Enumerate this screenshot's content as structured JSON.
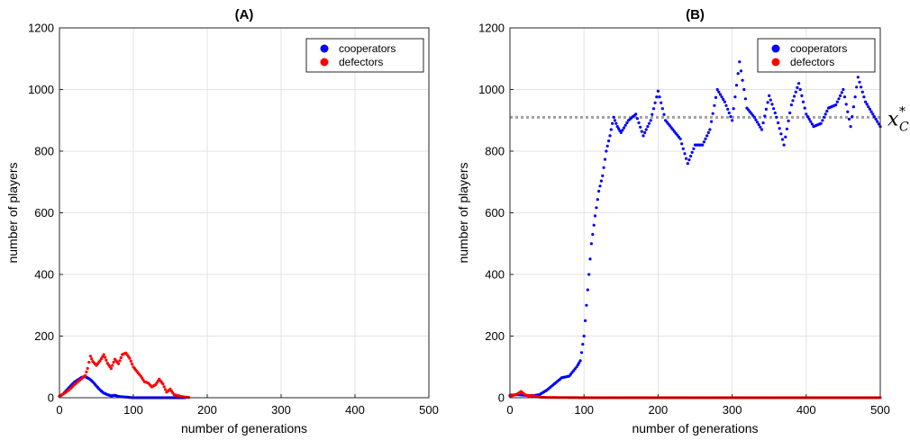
{
  "chart_data": [
    {
      "panel": "(A)",
      "type": "scatter",
      "title": "(A)",
      "xlabel": "number of generations",
      "ylabel": "number of players",
      "xlim": [
        0,
        500
      ],
      "ylim": [
        0,
        1200
      ],
      "xticks": [
        0,
        100,
        200,
        300,
        400,
        500
      ],
      "yticks": [
        0,
        200,
        400,
        600,
        800,
        1000,
        1200
      ],
      "grid": true,
      "legend": {
        "location": "top-right",
        "entries": [
          "cooperators",
          "defectors"
        ]
      },
      "series": [
        {
          "name": "cooperators",
          "color": "#0000ff",
          "x": [
            0,
            5,
            10,
            15,
            20,
            25,
            30,
            35,
            40,
            45,
            50,
            55,
            60,
            65,
            70,
            75,
            80,
            85,
            90,
            95,
            100,
            110,
            120,
            130,
            140,
            150,
            160,
            170
          ],
          "y": [
            5,
            12,
            25,
            38,
            50,
            58,
            66,
            68,
            62,
            52,
            38,
            25,
            15,
            10,
            6,
            8,
            4,
            3,
            2,
            1,
            0,
            0,
            0,
            0,
            0,
            0,
            0,
            0
          ]
        },
        {
          "name": "defectors",
          "color": "#ff0000",
          "x": [
            0,
            5,
            10,
            15,
            20,
            25,
            30,
            35,
            38,
            42,
            45,
            50,
            55,
            60,
            65,
            70,
            75,
            80,
            85,
            90,
            95,
            100,
            105,
            110,
            115,
            120,
            125,
            130,
            135,
            140,
            145,
            150,
            155,
            160,
            165,
            170,
            175
          ],
          "y": [
            5,
            12,
            20,
            30,
            42,
            52,
            62,
            72,
            95,
            135,
            118,
            105,
            120,
            140,
            112,
            95,
            125,
            110,
            140,
            145,
            128,
            100,
            85,
            70,
            52,
            48,
            35,
            42,
            60,
            45,
            18,
            28,
            10,
            7,
            4,
            2,
            1
          ]
        }
      ]
    },
    {
      "panel": "(B)",
      "type": "scatter",
      "title": "(B)",
      "xlabel": "number of generations",
      "ylabel": "number of players",
      "xlim": [
        0,
        500
      ],
      "ylim": [
        0,
        1200
      ],
      "xticks": [
        0,
        100,
        200,
        300,
        400,
        500
      ],
      "yticks": [
        0,
        200,
        400,
        600,
        800,
        1000,
        1200
      ],
      "grid": true,
      "legend": {
        "location": "top-right",
        "entries": [
          "cooperators",
          "defectors"
        ]
      },
      "reference_line": {
        "y": 910,
        "label": "x",
        "label_subscript": "C",
        "label_superscript": "*",
        "color": "#a0a0a0"
      },
      "series": [
        {
          "name": "cooperators",
          "color": "#0000ff",
          "x": [
            0,
            10,
            20,
            30,
            40,
            50,
            60,
            70,
            80,
            90,
            95,
            100,
            105,
            110,
            115,
            120,
            125,
            130,
            135,
            140,
            145,
            150,
            160,
            170,
            180,
            190,
            200,
            210,
            220,
            230,
            240,
            250,
            260,
            270,
            280,
            290,
            300,
            310,
            320,
            330,
            340,
            350,
            360,
            370,
            380,
            390,
            400,
            410,
            420,
            430,
            440,
            450,
            460,
            470,
            480,
            490,
            500
          ],
          "y": [
            8,
            10,
            8,
            6,
            10,
            25,
            45,
            65,
            70,
            100,
            120,
            200,
            350,
            500,
            590,
            670,
            720,
            800,
            850,
            910,
            880,
            860,
            900,
            920,
            850,
            900,
            995,
            900,
            870,
            840,
            760,
            820,
            820,
            870,
            1000,
            960,
            900,
            1090,
            940,
            910,
            870,
            980,
            910,
            820,
            950,
            1020,
            920,
            880,
            890,
            940,
            950,
            1000,
            880,
            1040,
            960,
            920,
            880
          ]
        },
        {
          "name": "defectors",
          "color": "#ff0000",
          "x": [
            0,
            5,
            10,
            15,
            20,
            25,
            30,
            35,
            40,
            50,
            100,
            150,
            200,
            250,
            300,
            350,
            400,
            450,
            500
          ],
          "y": [
            5,
            8,
            12,
            20,
            10,
            6,
            8,
            4,
            2,
            1,
            0,
            0,
            0,
            0,
            0,
            0,
            0,
            0,
            0
          ]
        }
      ]
    }
  ]
}
